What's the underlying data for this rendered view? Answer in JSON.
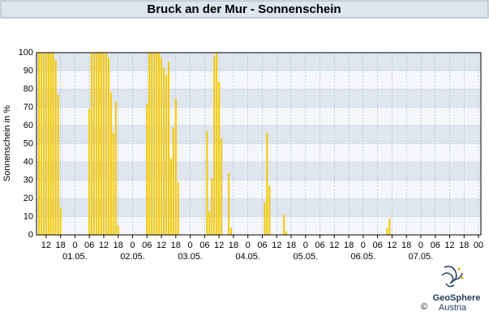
{
  "chart_data": {
    "type": "bar",
    "title": "Bruck an der Mur - Sonnenschein",
    "y_label": "Sonnenschein in %",
    "x": [
      -15,
      -14,
      -13,
      -12,
      -11,
      -10,
      -9,
      -8,
      -7,
      -6,
      6,
      7,
      8,
      9,
      10,
      11,
      12,
      13,
      14,
      15,
      16,
      17,
      18,
      30,
      31,
      32,
      33,
      34,
      35,
      36,
      37,
      38,
      39,
      40,
      41,
      42,
      43,
      55,
      56,
      57,
      58,
      59,
      60,
      61,
      64,
      65,
      79,
      80,
      81,
      87,
      88,
      130,
      131
    ],
    "values": [
      100,
      100,
      100,
      100,
      100,
      100,
      100,
      96,
      77,
      15,
      69,
      100,
      100,
      100,
      100,
      100,
      100,
      100,
      97,
      78,
      56,
      73,
      5,
      72,
      100,
      100,
      100,
      100,
      100,
      97,
      92,
      88,
      95,
      42,
      59,
      75,
      29,
      57,
      13,
      31,
      98,
      100,
      84,
      53,
      34,
      4,
      18,
      56,
      27,
      11,
      2,
      4,
      9
    ],
    "color": "#f5c800",
    "xlim": [
      -16,
      169
    ],
    "ylim": [
      0,
      100
    ],
    "yticks": [
      0,
      10,
      20,
      30,
      40,
      50,
      60,
      70,
      80,
      90,
      100
    ],
    "xticks": [
      {
        "value": -12,
        "label": "12"
      },
      {
        "value": -6,
        "label": "18"
      },
      0,
      {
        "value": 6,
        "label": "06"
      },
      {
        "value": 12,
        "label": "12"
      },
      {
        "value": 18,
        "label": "18"
      },
      {
        "value": 24,
        "label": "0"
      },
      {
        "value": 30,
        "label": "06"
      },
      {
        "value": 36,
        "label": "12"
      },
      {
        "value": 42,
        "label": "18"
      },
      {
        "value": 48,
        "label": "0"
      },
      {
        "value": 54,
        "label": "06"
      },
      {
        "value": 60,
        "label": "12"
      },
      {
        "value": 66,
        "label": "18"
      },
      {
        "value": 72,
        "label": "0"
      },
      {
        "value": 78,
        "label": "06"
      },
      {
        "value": 84,
        "label": "12"
      },
      {
        "value": 90,
        "label": "18"
      },
      {
        "value": 96,
        "label": "0"
      },
      {
        "value": 102,
        "label": "06"
      },
      {
        "value": 108,
        "label": "12"
      },
      {
        "value": 114,
        "label": "18"
      },
      {
        "value": 120,
        "label": "0"
      },
      {
        "value": 126,
        "label": "06"
      },
      {
        "value": 132,
        "label": "12"
      },
      {
        "value": 138,
        "label": "18"
      },
      {
        "value": 144,
        "label": "0"
      },
      {
        "value": 150,
        "label": "06"
      },
      {
        "value": 156,
        "label": "12"
      },
      {
        "value": 162,
        "label": "18"
      },
      {
        "value": 168,
        "label": "00"
      }
    ],
    "date_ticks": [
      {
        "value": 0,
        "label": "01.05."
      },
      {
        "value": 24,
        "label": "02.05."
      },
      {
        "value": 48,
        "label": "03.05."
      },
      {
        "value": 72,
        "label": "04.05."
      },
      {
        "value": 96,
        "label": "05.05."
      },
      {
        "value": 120,
        "label": "06.05."
      },
      {
        "value": 144,
        "label": "07.05."
      }
    ],
    "grid": true,
    "logo": {
      "name": "GeoSphere",
      "sub": "Austria",
      "copyright": "©"
    }
  }
}
